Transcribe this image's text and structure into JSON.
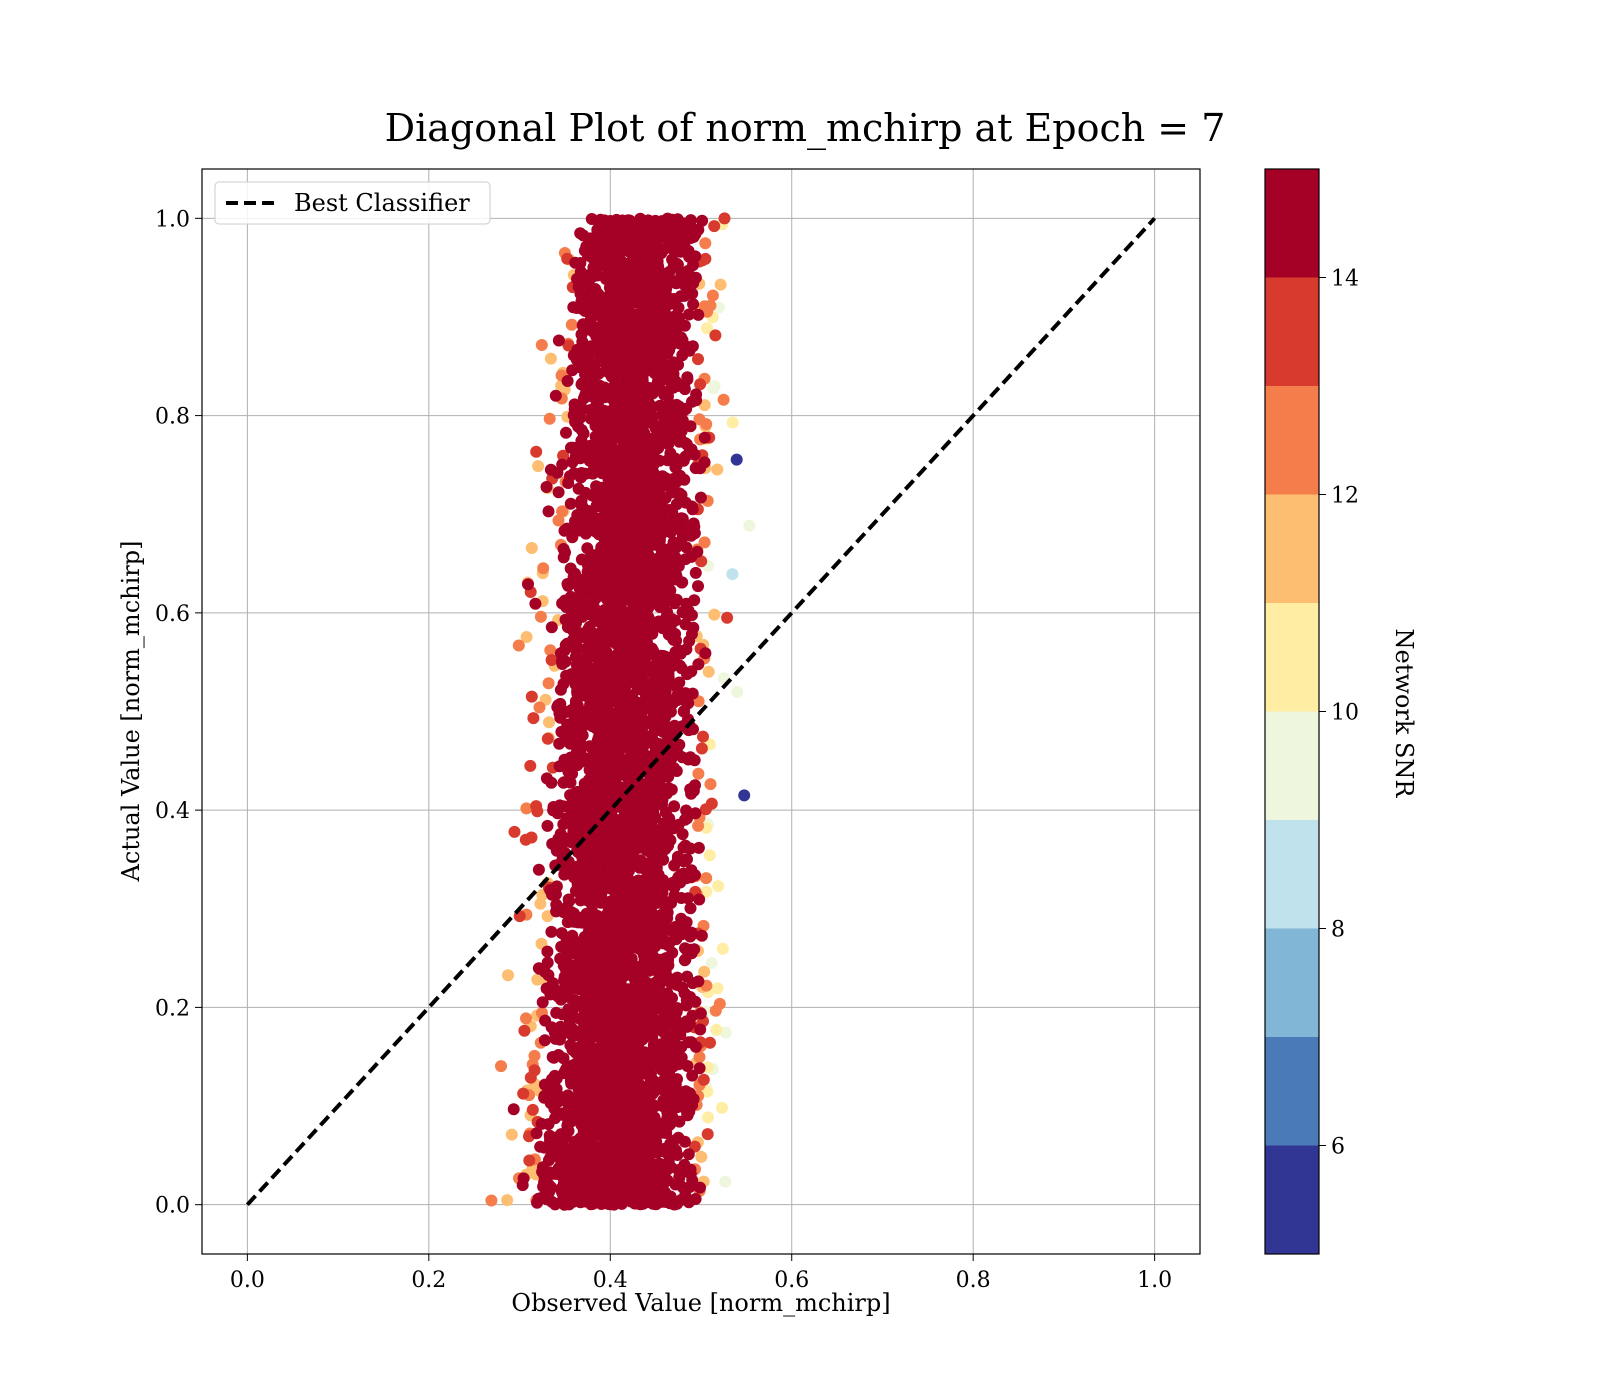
{
  "chart_data": {
    "type": "scatter",
    "title": "Diagonal Plot of norm_mchirp at Epoch = 7",
    "xlabel": "Observed Value [norm_mchirp]",
    "ylabel": "Actual Value [norm_mchirp]",
    "xlim": [
      -0.05,
      1.05
    ],
    "ylim": [
      -0.05,
      1.05
    ],
    "xticks": [
      "0.0",
      "0.2",
      "0.4",
      "0.6",
      "0.8",
      "1.0"
    ],
    "yticks": [
      "0.0",
      "0.2",
      "0.4",
      "0.6",
      "0.8",
      "1.0"
    ],
    "xtick_values": [
      0,
      0.2,
      0.4,
      0.6,
      0.8,
      1.0
    ],
    "ytick_values": [
      0,
      0.2,
      0.4,
      0.6,
      0.8,
      1.0
    ],
    "grid": true,
    "legend": {
      "placement": "top-left",
      "entries": [
        "Best Classifier"
      ]
    },
    "reference_line": {
      "name": "Best Classifier",
      "style": "dashed",
      "color": "#000000",
      "x": [
        0.0,
        1.0
      ],
      "y": [
        0.0,
        1.0
      ]
    },
    "scatter_summary": {
      "observed_range": [
        0.26,
        0.58
      ],
      "actual_range": [
        0.0,
        1.0
      ],
      "observed_center_low_actual": 0.4,
      "observed_center_high_actual": 0.43,
      "note_color_metric": "Network SNR"
    },
    "colorbar": {
      "label": "Network SNR",
      "range": [
        5,
        15
      ],
      "ticks": [
        "6",
        "8",
        "10",
        "12",
        "14"
      ],
      "tick_values": [
        6,
        8,
        10,
        12,
        14
      ],
      "bins": [
        {
          "from": 5,
          "to": 6,
          "color": "#313695"
        },
        {
          "from": 6,
          "to": 7,
          "color": "#4a7ab7"
        },
        {
          "from": 7,
          "to": 8,
          "color": "#82b6d6"
        },
        {
          "from": 8,
          "to": 9,
          "color": "#bfe2ed"
        },
        {
          "from": 9,
          "to": 10,
          "color": "#eef7dd"
        },
        {
          "from": 10,
          "to": 11,
          "color": "#feeda2"
        },
        {
          "from": 11,
          "to": 12,
          "color": "#fdbe71"
        },
        {
          "from": 12,
          "to": 13,
          "color": "#f47d4b"
        },
        {
          "from": 13,
          "to": 14,
          "color": "#d83a2e"
        },
        {
          "from": 14,
          "to": 15,
          "color": "#a50026"
        }
      ]
    }
  }
}
